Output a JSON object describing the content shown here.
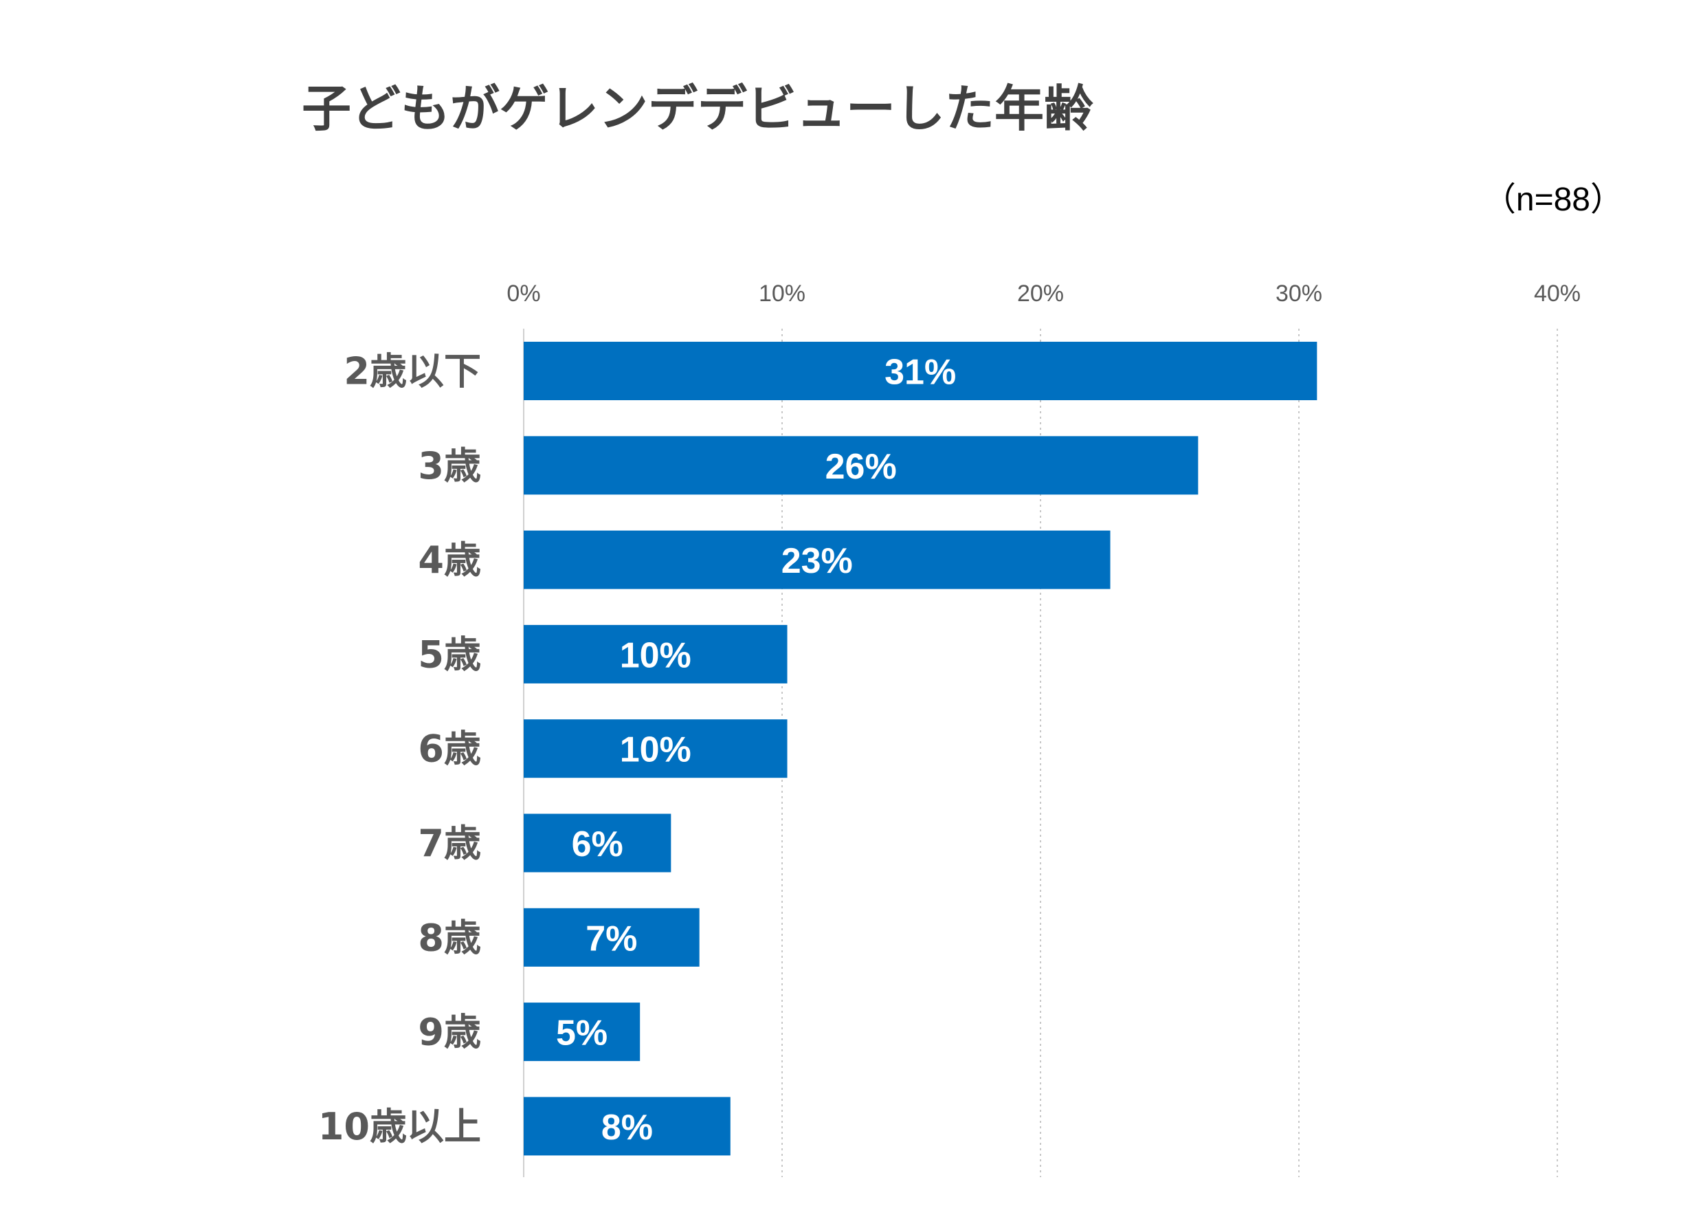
{
  "chart_data": {
    "type": "bar",
    "orientation": "horizontal",
    "title": "子どもがゲレンデデビューした年齢",
    "note": "（n=88）",
    "categories": [
      "2歳以下",
      "3歳",
      "4歳",
      "5歳",
      "6歳",
      "7歳",
      "8歳",
      "9歳",
      "10歳以上"
    ],
    "values": [
      30.7,
      26.1,
      22.7,
      10.2,
      10.2,
      5.7,
      6.8,
      4.5,
      8.0
    ],
    "value_labels": [
      "31%",
      "26%",
      "23%",
      "10%",
      "10%",
      "6%",
      "7%",
      "5%",
      "8%"
    ],
    "xticks": [
      "0%",
      "10%",
      "20%",
      "30%",
      "40%"
    ],
    "xlim": [
      0,
      40
    ],
    "xaxis_position": "top",
    "grid": true,
    "bar_color": "#0070C0"
  }
}
